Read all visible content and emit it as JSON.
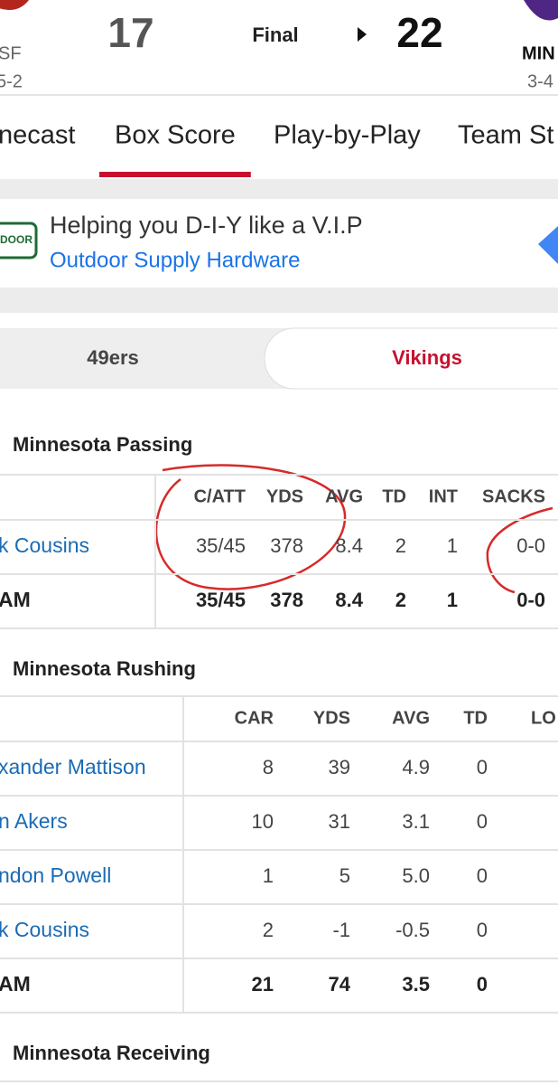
{
  "scoreboard": {
    "away": {
      "abbr": "SF",
      "record": "5-2",
      "score": "17"
    },
    "status": "Final",
    "home": {
      "abbr": "MIN",
      "record": "3-4",
      "score": "22"
    }
  },
  "tabs": {
    "items": [
      "necast",
      "Box Score",
      "Play-by-Play",
      "Team St"
    ],
    "active": 1
  },
  "ad": {
    "logo": "DOOR",
    "title": "Helping you D-I-Y like a V.I.P",
    "advertiser": "Outdoor Supply Hardware"
  },
  "team_toggle": {
    "items": [
      "49ers",
      "Vikings"
    ],
    "selected": 1
  },
  "passing": {
    "title": "Minnesota Passing",
    "columns": [
      "C/ATT",
      "YDS",
      "AVG",
      "TD",
      "INT",
      "SACKS"
    ],
    "rows": [
      {
        "name": "k Cousins",
        "cells": [
          "35/45",
          "378",
          "8.4",
          "2",
          "1",
          "0-0"
        ]
      },
      {
        "name": "AM",
        "cells": [
          "35/45",
          "378",
          "8.4",
          "2",
          "1",
          "0-0"
        ]
      }
    ]
  },
  "rushing": {
    "title": "Minnesota Rushing",
    "columns": [
      "CAR",
      "YDS",
      "AVG",
      "TD",
      "LO"
    ],
    "rows": [
      {
        "name": "xander Mattison",
        "cells": [
          "8",
          "39",
          "4.9",
          "0"
        ]
      },
      {
        "name": "n Akers",
        "cells": [
          "10",
          "31",
          "3.1",
          "0"
        ]
      },
      {
        "name": "ndon Powell",
        "cells": [
          "1",
          "5",
          "5.0",
          "0"
        ]
      },
      {
        "name": "k Cousins",
        "cells": [
          "2",
          "-1",
          "-0.5",
          "0"
        ]
      },
      {
        "name": "AM",
        "cells": [
          "21",
          "74",
          "3.5",
          "0"
        ]
      }
    ]
  },
  "receiving": {
    "title": "Minnesota Receiving"
  }
}
